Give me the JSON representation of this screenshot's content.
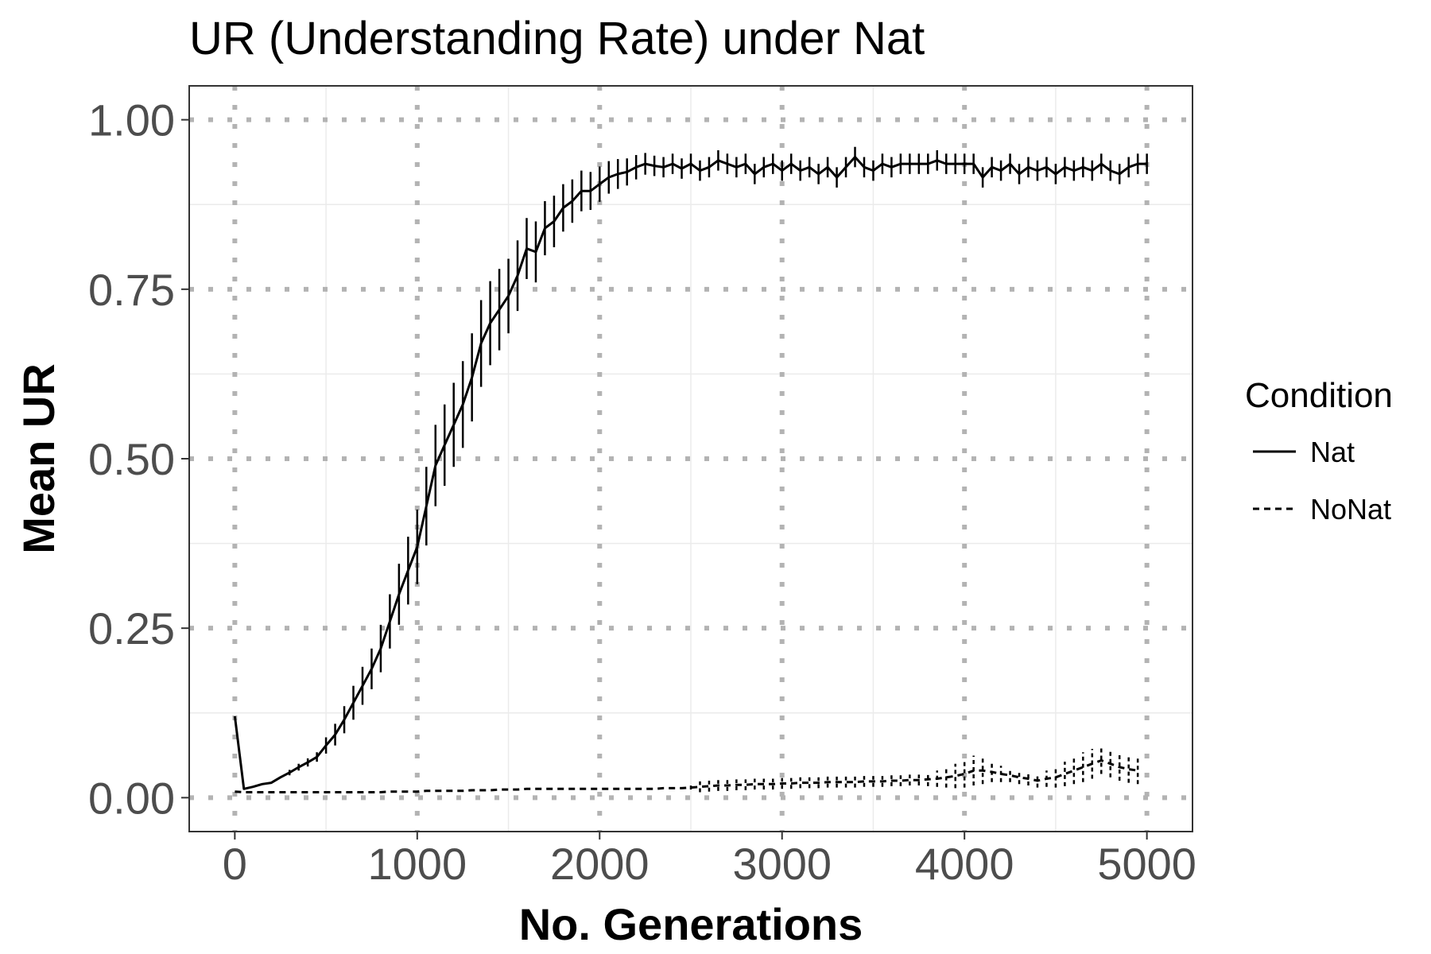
{
  "chart_data": {
    "type": "line",
    "title": "UR (Understanding Rate) under Nat",
    "xlabel": "No. Generations",
    "ylabel": "Mean UR",
    "xlim": [
      -250,
      5250
    ],
    "ylim": [
      -0.05,
      1.05
    ],
    "x_ticks": [
      0,
      1000,
      2000,
      3000,
      4000,
      5000
    ],
    "x_tick_labels": [
      "0",
      "1000",
      "2000",
      "3000",
      "4000",
      "5000"
    ],
    "y_ticks": [
      0,
      0.25,
      0.5,
      0.75,
      1.0
    ],
    "y_tick_labels": [
      "0.00",
      "0.25",
      "0.50",
      "0.75",
      "1.00"
    ],
    "grid": true,
    "legend": {
      "title": "Condition",
      "position": "right"
    },
    "series": [
      {
        "name": "Nat",
        "linestyle": "solid",
        "x": [
          0,
          50,
          100,
          150,
          200,
          250,
          300,
          350,
          400,
          450,
          500,
          550,
          600,
          650,
          700,
          750,
          800,
          850,
          900,
          950,
          1000,
          1050,
          1100,
          1150,
          1200,
          1250,
          1300,
          1350,
          1400,
          1450,
          1500,
          1550,
          1600,
          1650,
          1700,
          1750,
          1800,
          1850,
          1900,
          1950,
          2000,
          2050,
          2100,
          2150,
          2200,
          2250,
          2300,
          2350,
          2400,
          2450,
          2500,
          2550,
          2600,
          2650,
          2700,
          2750,
          2800,
          2850,
          2900,
          2950,
          3000,
          3050,
          3100,
          3150,
          3200,
          3250,
          3300,
          3350,
          3400,
          3450,
          3500,
          3550,
          3600,
          3650,
          3700,
          3750,
          3800,
          3850,
          3900,
          3950,
          4000,
          4050,
          4100,
          4150,
          4200,
          4250,
          4300,
          4350,
          4400,
          4450,
          4500,
          4550,
          4600,
          4650,
          4700,
          4750,
          4800,
          4850,
          4900,
          4950,
          5000
        ],
        "y": [
          0.12,
          0.013,
          0.016,
          0.02,
          0.022,
          0.03,
          0.037,
          0.045,
          0.052,
          0.06,
          0.077,
          0.093,
          0.115,
          0.14,
          0.165,
          0.19,
          0.22,
          0.26,
          0.3,
          0.335,
          0.37,
          0.43,
          0.49,
          0.52,
          0.55,
          0.58,
          0.62,
          0.67,
          0.7,
          0.72,
          0.74,
          0.77,
          0.81,
          0.805,
          0.84,
          0.85,
          0.87,
          0.88,
          0.895,
          0.895,
          0.905,
          0.915,
          0.92,
          0.923,
          0.93,
          0.935,
          0.932,
          0.93,
          0.935,
          0.928,
          0.935,
          0.925,
          0.93,
          0.94,
          0.935,
          0.93,
          0.935,
          0.92,
          0.93,
          0.935,
          0.925,
          0.935,
          0.925,
          0.93,
          0.92,
          0.93,
          0.915,
          0.93,
          0.945,
          0.93,
          0.925,
          0.935,
          0.93,
          0.935,
          0.935,
          0.935,
          0.935,
          0.94,
          0.935,
          0.935,
          0.935,
          0.935,
          0.915,
          0.93,
          0.925,
          0.935,
          0.92,
          0.93,
          0.925,
          0.93,
          0.92,
          0.93,
          0.925,
          0.93,
          0.925,
          0.935,
          0.925,
          0.92,
          0.93,
          0.935,
          0.935
        ],
        "err": [
          0,
          0,
          0,
          0,
          0,
          0,
          0.004,
          0.005,
          0.006,
          0.007,
          0.012,
          0.016,
          0.02,
          0.025,
          0.028,
          0.03,
          0.035,
          0.04,
          0.045,
          0.05,
          0.055,
          0.058,
          0.06,
          0.06,
          0.062,
          0.064,
          0.065,
          0.064,
          0.062,
          0.06,
          0.055,
          0.052,
          0.045,
          0.045,
          0.04,
          0.038,
          0.035,
          0.032,
          0.03,
          0.028,
          0.026,
          0.024,
          0.022,
          0.02,
          0.018,
          0.016,
          0.015,
          0.015,
          0.015,
          0.015,
          0.015,
          0.015,
          0.015,
          0.015,
          0.015,
          0.015,
          0.015,
          0.015,
          0.015,
          0.015,
          0.015,
          0.015,
          0.015,
          0.015,
          0.015,
          0.015,
          0.015,
          0.015,
          0.015,
          0.015,
          0.015,
          0.015,
          0.015,
          0.015,
          0.015,
          0.015,
          0.015,
          0.015,
          0.015,
          0.015,
          0.015,
          0.015,
          0.015,
          0.015,
          0.015,
          0.015,
          0.015,
          0.015,
          0.015,
          0.015,
          0.015,
          0.015,
          0.015,
          0.015,
          0.015,
          0.015,
          0.015,
          0.015,
          0.015,
          0.015,
          0.015
        ]
      },
      {
        "name": "NoNat",
        "linestyle": "dashed",
        "x": [
          0,
          50,
          100,
          150,
          200,
          250,
          300,
          350,
          400,
          450,
          500,
          550,
          600,
          650,
          700,
          750,
          800,
          850,
          900,
          950,
          1000,
          1050,
          1100,
          1150,
          1200,
          1250,
          1300,
          1350,
          1400,
          1450,
          1500,
          1550,
          1600,
          1650,
          1700,
          1750,
          1800,
          1850,
          1900,
          1950,
          2000,
          2050,
          2100,
          2150,
          2200,
          2250,
          2300,
          2350,
          2400,
          2450,
          2500,
          2550,
          2600,
          2650,
          2700,
          2750,
          2800,
          2850,
          2900,
          2950,
          3000,
          3050,
          3100,
          3150,
          3200,
          3250,
          3300,
          3350,
          3400,
          3450,
          3500,
          3550,
          3600,
          3650,
          3700,
          3750,
          3800,
          3850,
          3900,
          3950,
          4000,
          4050,
          4100,
          4150,
          4200,
          4250,
          4300,
          4350,
          4400,
          4450,
          4500,
          4550,
          4600,
          4650,
          4700,
          4750,
          4800,
          4850,
          4900,
          4950
        ],
        "y": [
          0.009,
          0.008,
          0.008,
          0.008,
          0.008,
          0.008,
          0.008,
          0.008,
          0.008,
          0.008,
          0.008,
          0.008,
          0.008,
          0.008,
          0.008,
          0.008,
          0.008,
          0.009,
          0.009,
          0.009,
          0.009,
          0.01,
          0.01,
          0.01,
          0.01,
          0.01,
          0.011,
          0.011,
          0.011,
          0.012,
          0.012,
          0.012,
          0.013,
          0.013,
          0.013,
          0.013,
          0.013,
          0.013,
          0.013,
          0.013,
          0.013,
          0.013,
          0.013,
          0.013,
          0.013,
          0.013,
          0.013,
          0.014,
          0.014,
          0.014,
          0.015,
          0.016,
          0.017,
          0.018,
          0.018,
          0.019,
          0.019,
          0.02,
          0.02,
          0.02,
          0.021,
          0.021,
          0.022,
          0.022,
          0.022,
          0.023,
          0.023,
          0.023,
          0.023,
          0.024,
          0.024,
          0.024,
          0.025,
          0.025,
          0.026,
          0.026,
          0.027,
          0.028,
          0.03,
          0.032,
          0.035,
          0.04,
          0.04,
          0.038,
          0.035,
          0.033,
          0.03,
          0.028,
          0.025,
          0.028,
          0.03,
          0.035,
          0.04,
          0.045,
          0.05,
          0.055,
          0.05,
          0.045,
          0.042,
          0.04
        ],
        "err": [
          0,
          0,
          0,
          0,
          0,
          0,
          0,
          0,
          0,
          0,
          0,
          0,
          0,
          0,
          0,
          0,
          0,
          0,
          0,
          0,
          0,
          0,
          0,
          0,
          0,
          0,
          0,
          0,
          0,
          0,
          0,
          0,
          0,
          0,
          0,
          0,
          0,
          0,
          0,
          0,
          0,
          0,
          0,
          0,
          0,
          0,
          0,
          0,
          0,
          0,
          0.003,
          0.008,
          0.008,
          0.008,
          0.008,
          0.008,
          0.008,
          0.008,
          0.008,
          0.008,
          0.008,
          0.008,
          0.008,
          0.008,
          0.008,
          0.008,
          0.008,
          0.008,
          0.008,
          0.008,
          0.008,
          0.008,
          0.008,
          0.008,
          0.008,
          0.008,
          0.01,
          0.012,
          0.015,
          0.018,
          0.02,
          0.022,
          0.02,
          0.015,
          0.012,
          0.01,
          0.01,
          0.01,
          0.01,
          0.012,
          0.015,
          0.018,
          0.02,
          0.022,
          0.022,
          0.02,
          0.02,
          0.02,
          0.02,
          0.02
        ]
      }
    ]
  }
}
